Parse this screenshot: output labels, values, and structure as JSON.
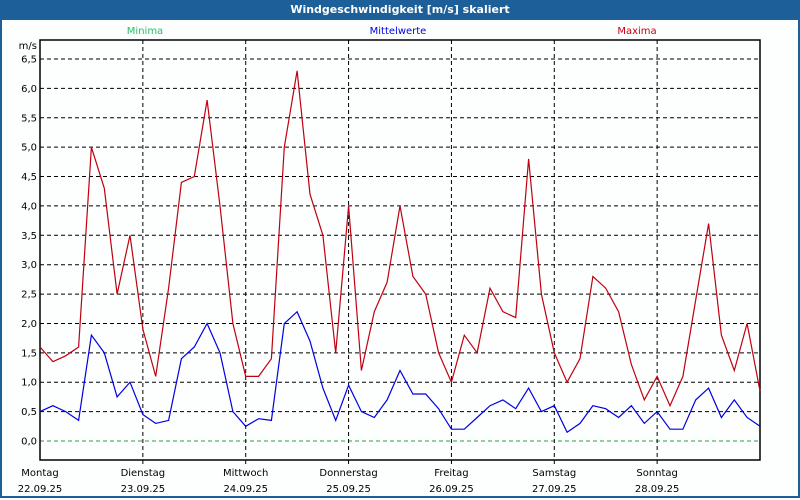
{
  "window": {
    "title": "Windgeschwindigkeit [m/s] skaliert"
  },
  "chart_data": {
    "type": "line",
    "title": "Windgeschwindigkeit [m/s] skaliert",
    "ylabel": "m/s",
    "ylim": [
      -0.3,
      6.8
    ],
    "yticks": [
      0,
      0.5,
      1,
      1.5,
      2,
      2.5,
      3,
      3.5,
      4,
      4.5,
      5,
      5.5,
      6,
      6.5
    ],
    "ytick_labels": [
      "0,0",
      "0,5",
      "1,0",
      "1,5",
      "2,0",
      "2,5",
      "3,0",
      "3,5",
      "4,0",
      "4,5",
      "5,0",
      "5,5",
      "6,0",
      "6,5"
    ],
    "x_unit": "hours since Montag 00:00",
    "xlim": [
      0,
      168
    ],
    "x_step_hours": 3,
    "days": [
      {
        "name": "Montag",
        "date": "22.09.25"
      },
      {
        "name": "Dienstag",
        "date": "23.09.25"
      },
      {
        "name": "Mittwoch",
        "date": "24.09.25"
      },
      {
        "name": "Donnerstag",
        "date": "25.09.25"
      },
      {
        "name": "Freitag",
        "date": "26.09.25"
      },
      {
        "name": "Samstag",
        "date": "27.09.25"
      },
      {
        "name": "Sonntag",
        "date": "28.09.25"
      }
    ],
    "grid": true,
    "legend_position": "top",
    "series": [
      {
        "name": "Minima",
        "color": "#22c06a",
        "values": [
          0
        ]
      },
      {
        "name": "Mittelwerte",
        "color": "#0000e0",
        "values": [
          0.5,
          0.6,
          0.5,
          0.35,
          1.8,
          1.5,
          0.75,
          1.0,
          0.45,
          0.3,
          0.35,
          1.4,
          1.6,
          2.0,
          1.5,
          0.5,
          0.25,
          0.38,
          0.35,
          2.0,
          2.2,
          1.7,
          0.9,
          0.35,
          0.95,
          0.5,
          0.4,
          0.7,
          1.2,
          0.8,
          0.8,
          0.55,
          0.2,
          0.2,
          0.4,
          0.6,
          0.7,
          0.55,
          0.9,
          0.5,
          0.6,
          0.15,
          0.3,
          0.6,
          0.55,
          0.4,
          0.6,
          0.3,
          0.5,
          0.2,
          0.2,
          0.7,
          0.9,
          0.4,
          0.7,
          0.4,
          0.25
        ]
      },
      {
        "name": "Maxima",
        "color": "#c00010",
        "values": [
          1.6,
          1.35,
          1.45,
          1.6,
          5.0,
          4.3,
          2.5,
          3.5,
          1.9,
          1.1,
          2.6,
          4.4,
          4.5,
          5.8,
          4.0,
          2.0,
          1.1,
          1.1,
          1.4,
          5.0,
          6.3,
          4.2,
          3.5,
          1.5,
          4.0,
          1.2,
          2.2,
          2.7,
          4.0,
          2.8,
          2.5,
          1.5,
          1.0,
          1.8,
          1.5,
          2.6,
          2.2,
          2.1,
          4.8,
          2.5,
          1.5,
          1.0,
          1.4,
          2.8,
          2.6,
          2.2,
          1.3,
          0.7,
          1.1,
          0.6,
          1.1,
          2.4,
          3.7,
          1.8,
          1.2,
          2.0,
          0.85
        ]
      }
    ]
  }
}
